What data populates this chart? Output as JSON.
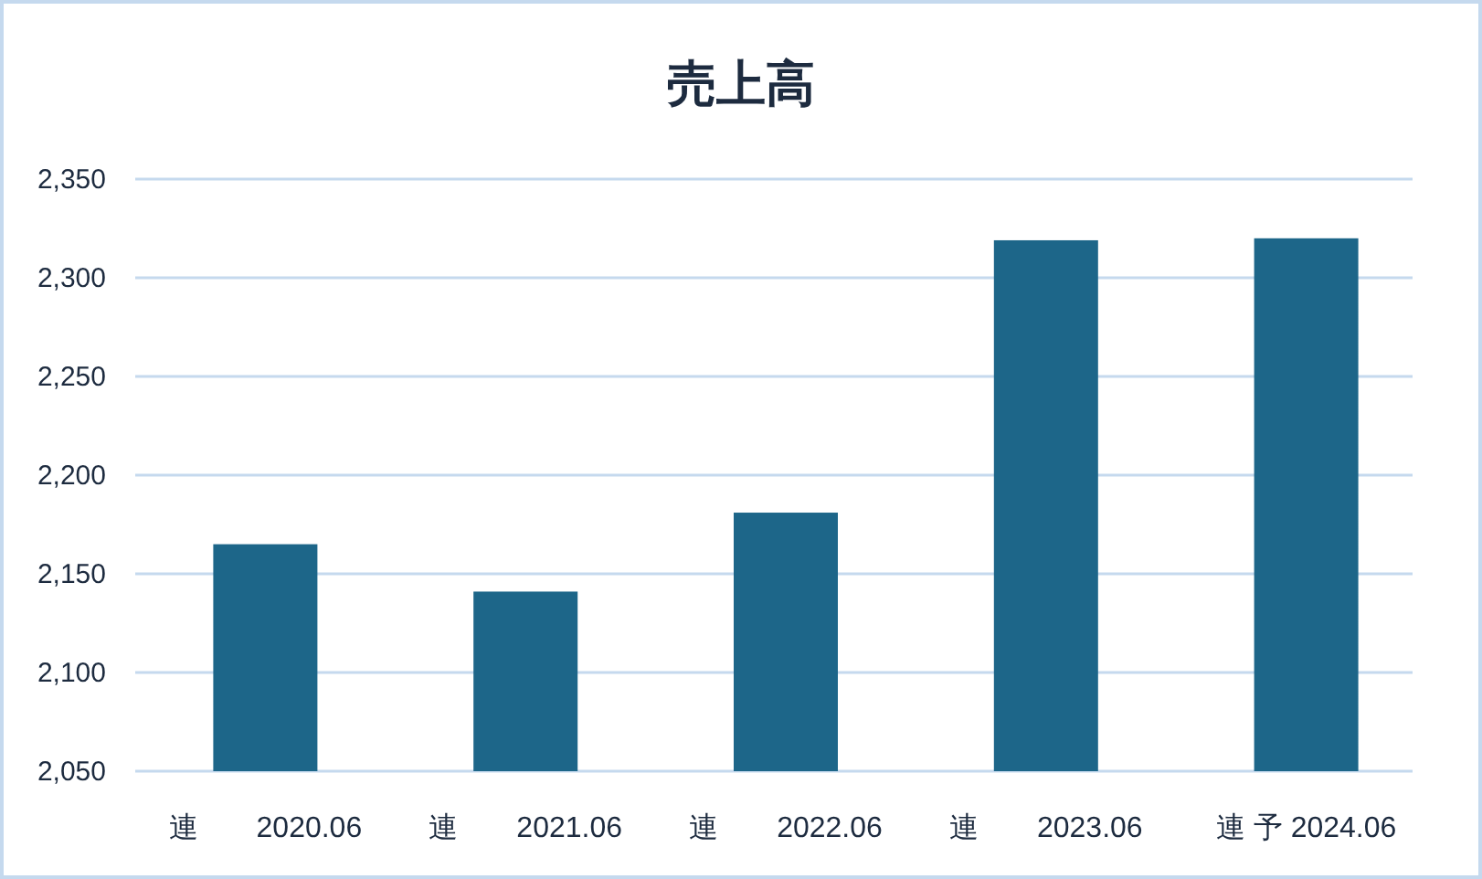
{
  "chart_data": {
    "type": "bar",
    "title": "売上高",
    "categories": [
      "連　　2020.06",
      "連　　2021.06",
      "連　　2022.06",
      "連　　2023.06",
      "連 予 2024.06"
    ],
    "series": [
      {
        "color": "#1d6689",
        "values": [
          2165,
          2141,
          2181,
          2319,
          2320
        ]
      }
    ],
    "ylim": [
      2050,
      2350
    ],
    "yticks": [
      {
        "value": 2050,
        "label": "2,050"
      },
      {
        "value": 2100,
        "label": "2,100"
      },
      {
        "value": 2150,
        "label": "2,150"
      },
      {
        "value": 2200,
        "label": "2,200"
      },
      {
        "value": 2250,
        "label": "2,250"
      },
      {
        "value": 2300,
        "label": "2,300"
      },
      {
        "value": 2350,
        "label": "2,350"
      }
    ],
    "grid": "y"
  }
}
